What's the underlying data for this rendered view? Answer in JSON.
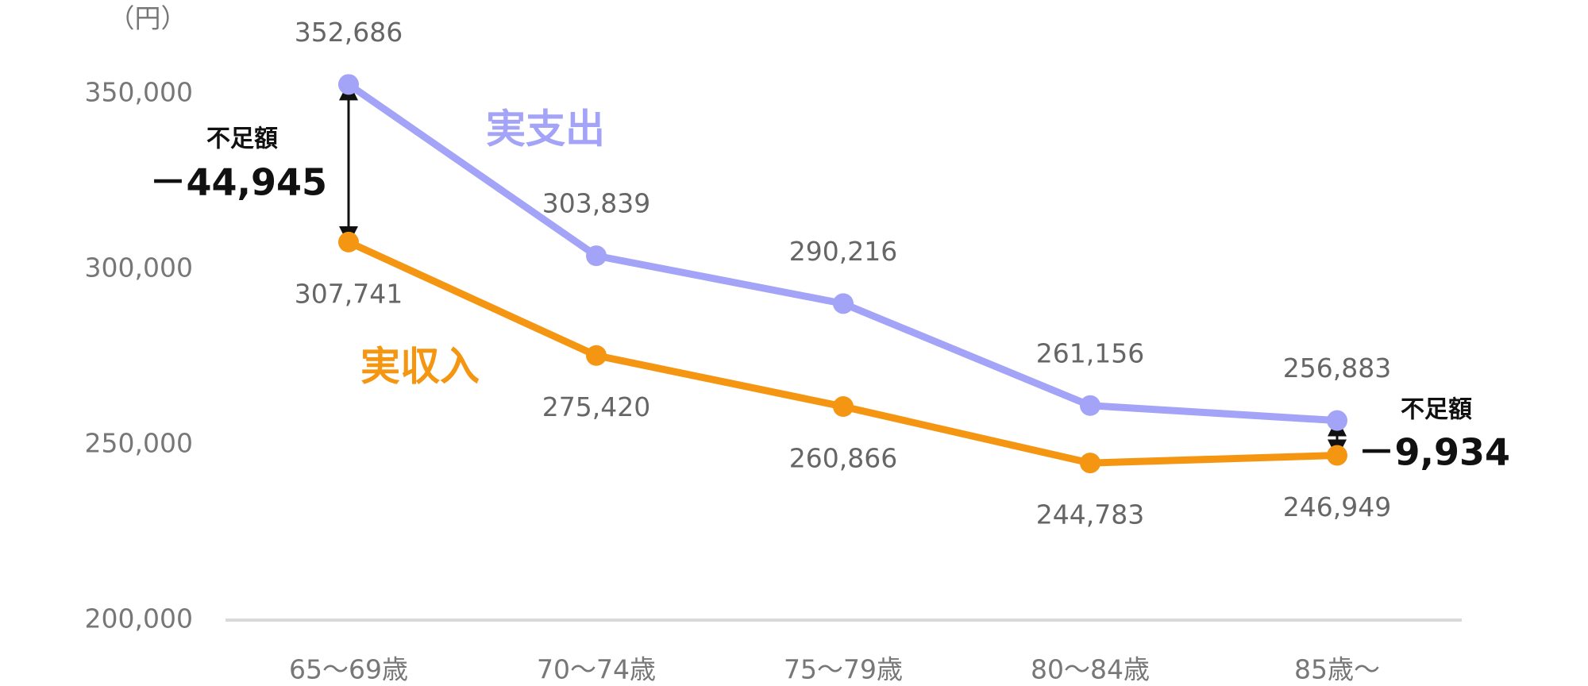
{
  "chart_data": {
    "type": "line",
    "unit_label": "（円）",
    "categories": [
      "65～69歳",
      "70～74歳",
      "75～79歳",
      "80～84歳",
      "85歳～"
    ],
    "series": [
      {
        "name": "実支出",
        "color": "#a3a3f7",
        "values": [
          352686,
          303839,
          290216,
          261156,
          256883
        ],
        "value_labels": [
          "352,686",
          "303,839",
          "290,216",
          "261,156",
          "256,883"
        ]
      },
      {
        "name": "実収入",
        "color": "#f59612",
        "values": [
          307741,
          275420,
          260866,
          244783,
          246949
        ],
        "value_labels": [
          "307,741",
          "275,420",
          "260,866",
          "244,783",
          "246,949"
        ]
      }
    ],
    "ylim": [
      200000,
      360000
    ],
    "yticks": [
      {
        "value": 200000,
        "label": "200,000"
      },
      {
        "value": 250000,
        "label": "250,000"
      },
      {
        "value": 300000,
        "label": "300,000"
      },
      {
        "value": 350000,
        "label": "350,000"
      }
    ],
    "grid": false,
    "annotations": [
      {
        "title": "不足額",
        "text": "－44,945"
      },
      {
        "title": "不足額",
        "text": "－9,934"
      }
    ]
  }
}
